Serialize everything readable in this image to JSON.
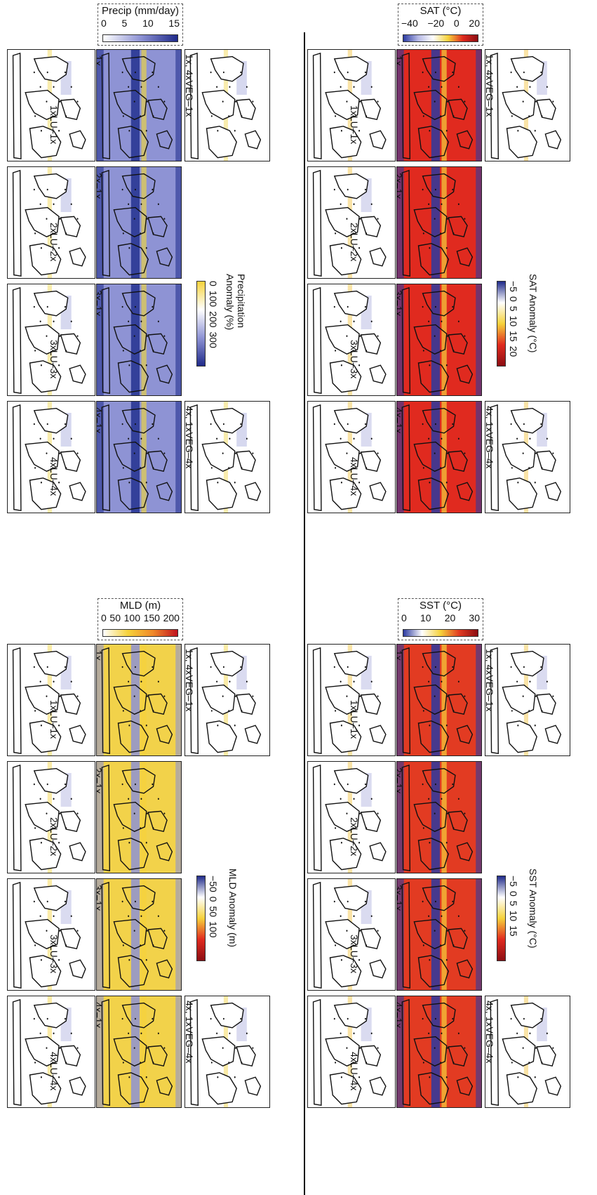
{
  "colors": {
    "precip_scale": "#1f2a8a",
    "sat_scale_cold": "#1f2a8a",
    "sat_scale_hot": "#c1121f",
    "anomaly_warm": "#f5d000",
    "anomaly_cool": "#6c6fc2"
  },
  "quadrants": {
    "precip": {
      "colorbar": {
        "title": "Precip (mm/day)",
        "ticks": [
          "0",
          "5",
          "10",
          "15"
        ]
      },
      "anomaly_colorbar": {
        "title_line1": "Precipitation",
        "title_line2": "Anomaly (%)",
        "ticks": [
          "0",
          "100",
          "200",
          "300"
        ]
      },
      "lu_labels": [
        "1xLU–1x",
        "2xLU–2x",
        "3xLU–3x",
        "4xLU–4x"
      ],
      "mid_labels": [
        "1x",
        "2x–1x",
        "3x–1x",
        "4x–1x"
      ],
      "veg_labels": [
        "1x, 4xVEG–1x",
        "4x, 1xVEG–4x"
      ]
    },
    "sat": {
      "colorbar": {
        "title": "SAT (°C)",
        "ticks": [
          "−40",
          "−20",
          "0",
          "20"
        ]
      },
      "anomaly_colorbar": {
        "title": "SAT Anomaly  (°C)",
        "ticks": [
          "−5",
          "0",
          "5",
          "10",
          "15",
          "20"
        ]
      },
      "lu_labels": [
        "1xLU–1x",
        "2xLU–2x",
        "3xLU–3x",
        "4xLU–4x"
      ],
      "mid_labels": [
        "1x",
        "2x–1x",
        "3x–1x",
        "4x–1x"
      ],
      "veg_labels": [
        "1x, 4xVEG–1x",
        "4x, 1xVEG–4x"
      ]
    },
    "mld": {
      "colorbar": {
        "title": "MLD (m)",
        "ticks": [
          "0",
          "50",
          "100",
          "150",
          "200"
        ]
      },
      "anomaly_colorbar": {
        "title": "MLD Anomaly (m)",
        "ticks": [
          "−50",
          "0",
          "50",
          "100"
        ]
      },
      "lu_labels": [
        "1xLU–1x",
        "2xLU–2x",
        "3xLU–3x",
        "4xLU–4x"
      ],
      "mid_labels": [
        "1x",
        "2x–1x",
        "3x–1x",
        "4x–1x"
      ],
      "veg_labels": [
        "1x, 4xVEG–1x",
        "4x, 1xVEG–4x"
      ]
    },
    "sst": {
      "colorbar": {
        "title": "SST  (°C)",
        "ticks": [
          "0",
          "10",
          "20",
          "30"
        ]
      },
      "anomaly_colorbar": {
        "title": "SST Anomaly (°C)",
        "ticks": [
          "−5",
          "0",
          "5",
          "10",
          "15"
        ]
      },
      "lu_labels": [
        "1xLU–1x",
        "2xLU–2x",
        "3xLU–3x",
        "4xLU–4x"
      ],
      "mid_labels": [
        "1x",
        "2x–1x",
        "3x–1x",
        "4x–1x"
      ],
      "veg_labels": [
        "1x, 4xVEG–1x",
        "4x, 1xVEG–4x"
      ]
    }
  }
}
